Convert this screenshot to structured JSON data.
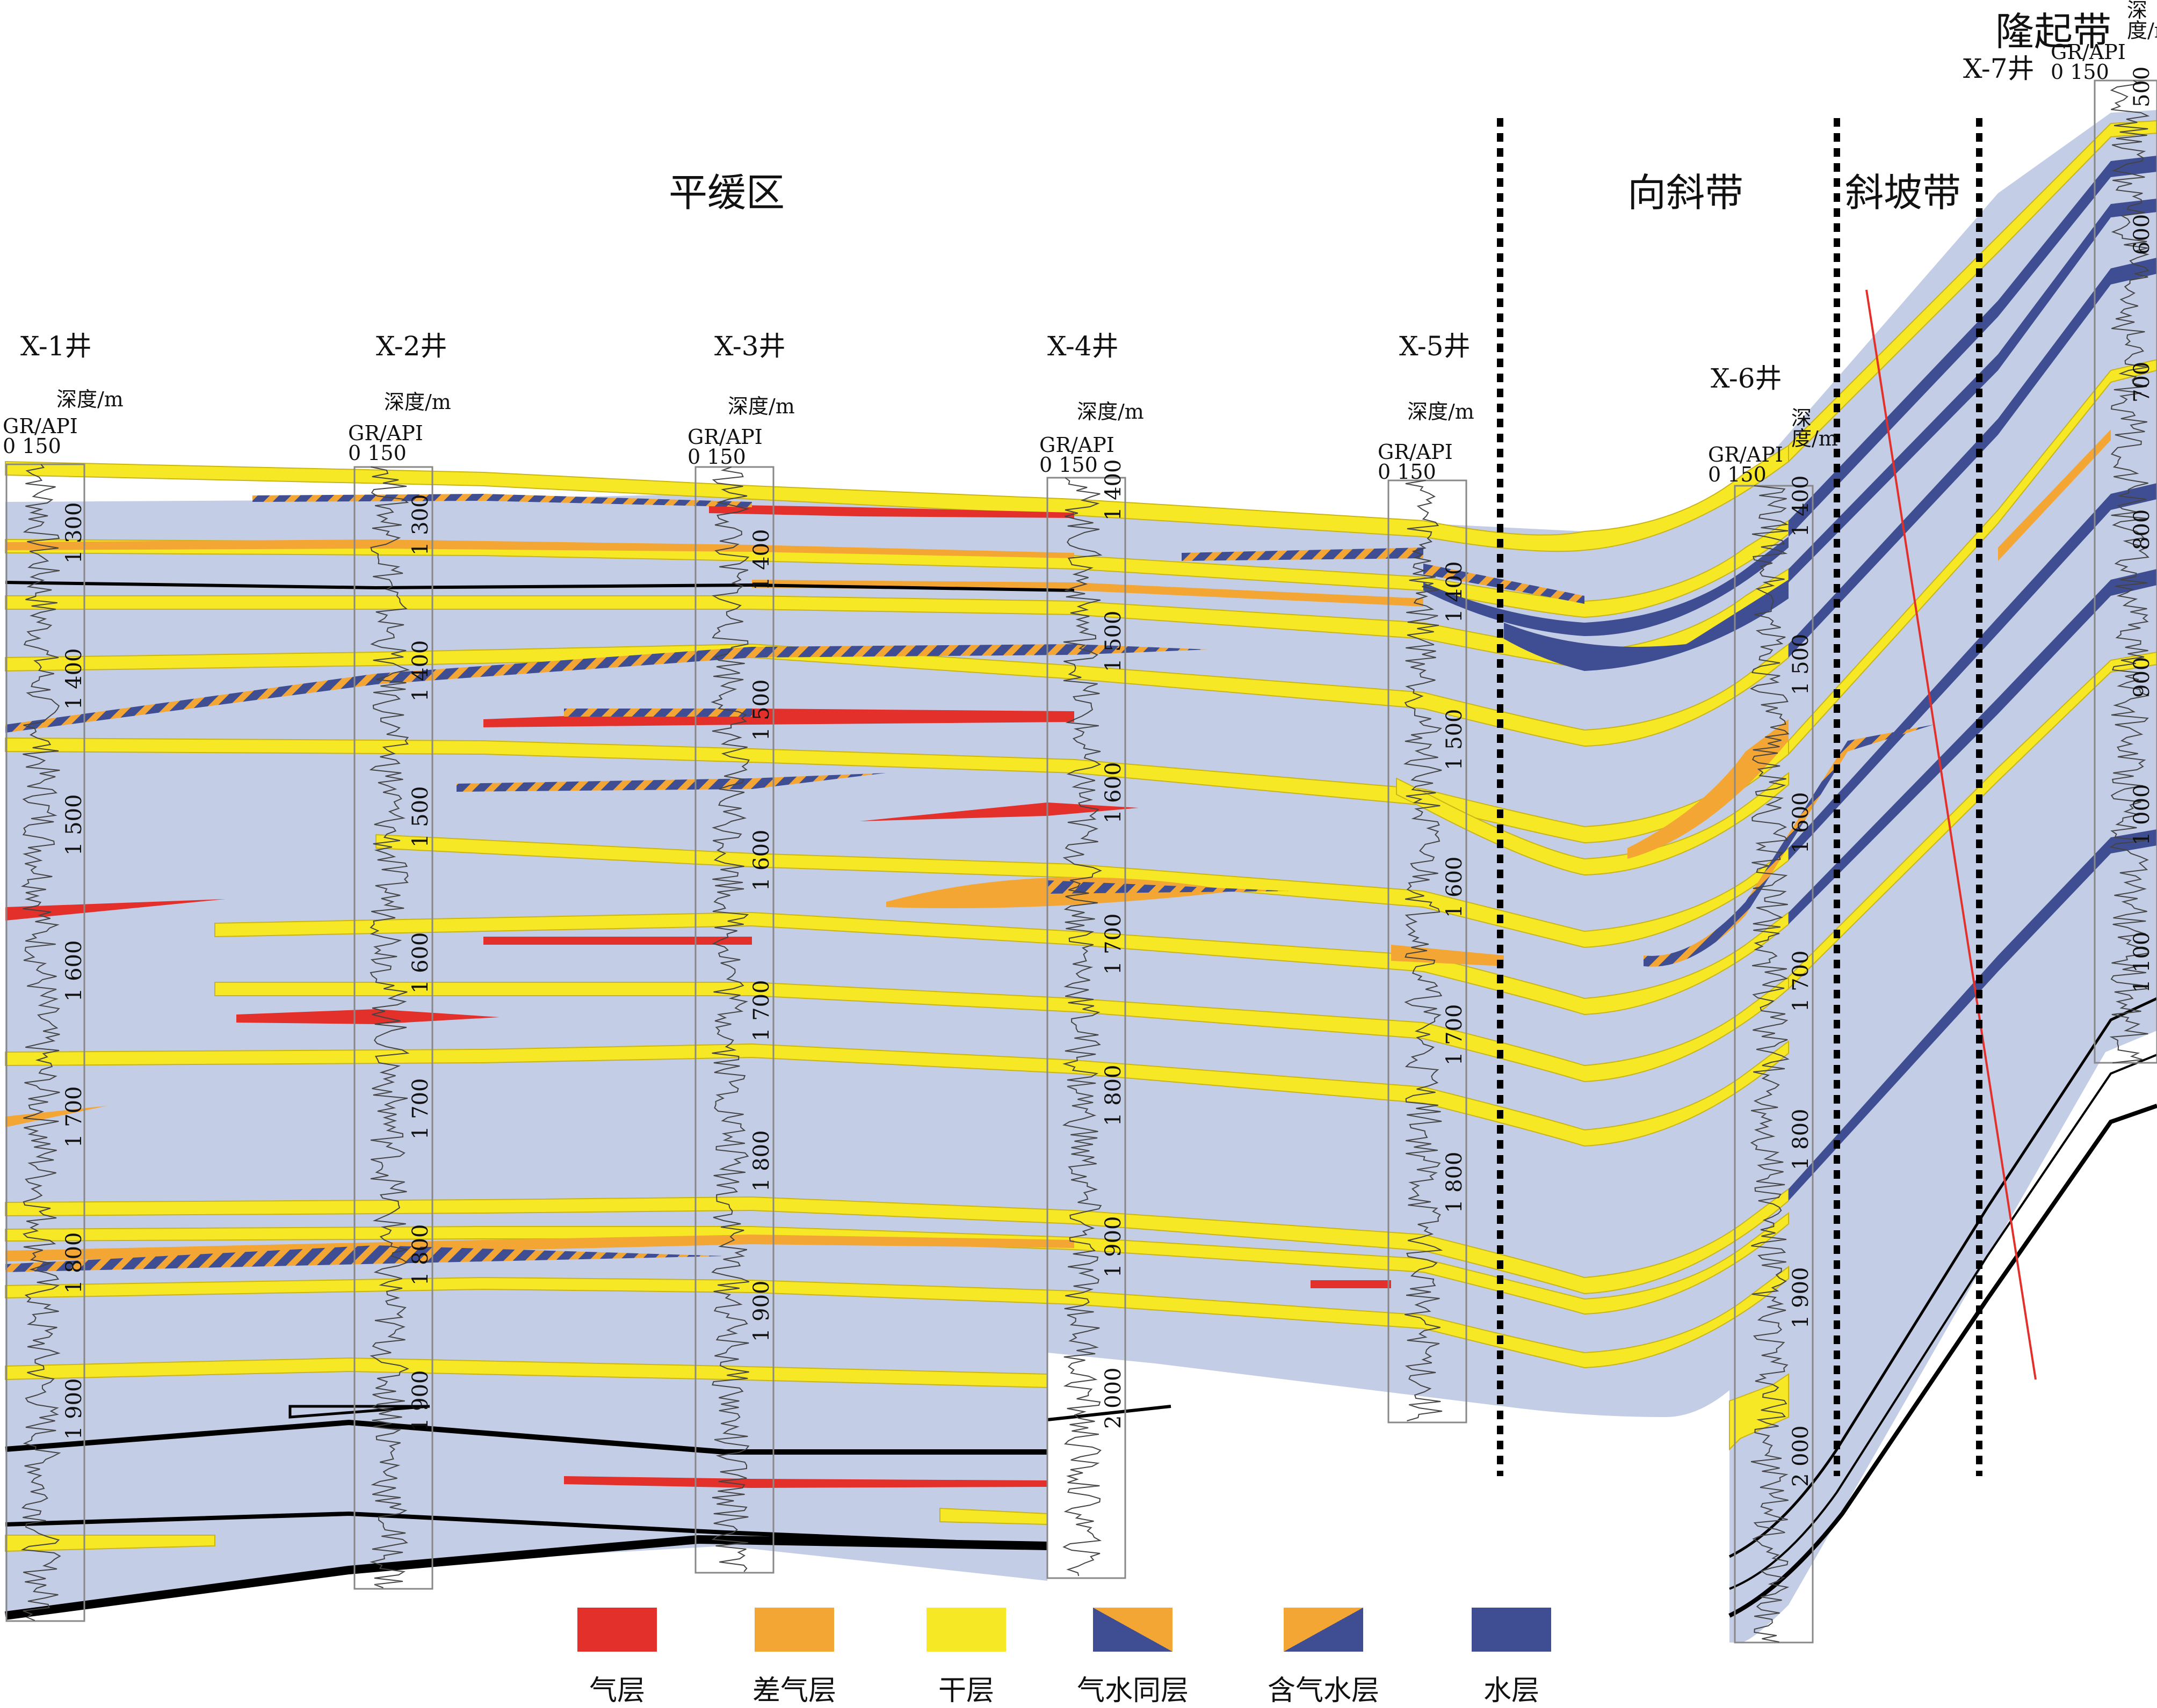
{
  "zones": [
    {
      "id": "flat",
      "label": "平缓区"
    },
    {
      "id": "syncline",
      "label": "向斜带"
    },
    {
      "id": "slope",
      "label": "斜坡带"
    },
    {
      "id": "uplift",
      "label": "隆起带"
    }
  ],
  "curve_header": {
    "depth_label": "深度/m",
    "gr_label": "GR/API",
    "gr_scale": "0  150"
  },
  "wells": [
    {
      "name": "X-1井",
      "depth_ticks": [
        "1 300",
        "1 400",
        "1 500",
        "1 600",
        "1 700",
        "1 800",
        "1 900"
      ]
    },
    {
      "name": "X-2井",
      "depth_ticks": [
        "1 300",
        "1 400",
        "1 500",
        "1 600",
        "1 700",
        "1 800",
        "1 900"
      ]
    },
    {
      "name": "X-3井",
      "depth_ticks": [
        "1 400",
        "1 500",
        "1 600",
        "1 700",
        "1 800",
        "1 900"
      ]
    },
    {
      "name": "X-4井",
      "depth_ticks": [
        "1 400",
        "1 500",
        "1 600",
        "1 700",
        "1 800",
        "1 900",
        "2 000"
      ]
    },
    {
      "name": "X-5井",
      "depth_ticks": [
        "1 400",
        "1 500",
        "1 600",
        "1 700",
        "1 800"
      ]
    },
    {
      "name": "X-6井",
      "depth_ticks": [
        "1 400",
        "1 500",
        "1 600",
        "1 700",
        "1 800",
        "1 900",
        "2 000"
      ]
    },
    {
      "name": "X-7井",
      "depth_ticks": [
        "500",
        "600",
        "700",
        "800",
        "900",
        "1 000",
        "1 100"
      ]
    }
  ],
  "legend": [
    {
      "label": "气层",
      "color": "#e3302b"
    },
    {
      "label": "差气层",
      "color": "#f3a634"
    },
    {
      "label": "干层",
      "color": "#f6e824"
    },
    {
      "label": "气水同层",
      "color_a": "#3f4e92",
      "color_b": "#f3a634"
    },
    {
      "label": "含气水层",
      "color_a": "#3f4e92",
      "color_b": "#f3a634"
    },
    {
      "label": "水层",
      "color": "#3f4e92"
    }
  ],
  "colors": {
    "background": "#c3cde6",
    "gas": "#e3302b",
    "poor_gas": "#f3a634",
    "dry": "#f6e824",
    "water": "#3f4e92",
    "boundary": "#000000",
    "fault": "#e3302b"
  }
}
